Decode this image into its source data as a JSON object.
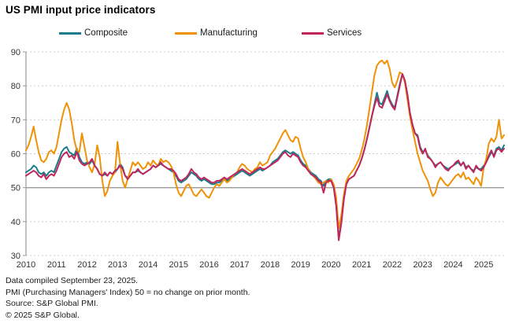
{
  "header": {
    "title": "US PMI input price indicators"
  },
  "legend": {
    "items": [
      {
        "label": "Composite",
        "color": "#1b7c8c"
      },
      {
        "label": "Manufacturing",
        "color": "#f09207"
      },
      {
        "label": "Services",
        "color": "#c0265c"
      }
    ]
  },
  "chart_data": {
    "type": "line",
    "title": "US PMI input price indicators",
    "x_unit": "month",
    "x_start": "2010-01",
    "x_end": "2025-09",
    "x_tick_labels": [
      "2010",
      "2011",
      "2012",
      "2013",
      "2014",
      "2015",
      "2016",
      "2017",
      "2018",
      "2019",
      "2020",
      "2021",
      "2022",
      "2023",
      "2024",
      "2025"
    ],
    "ylim": [
      30,
      90
    ],
    "y_ticks": [
      30,
      40,
      50,
      60,
      70,
      80,
      90
    ],
    "reference_line": {
      "value": 50,
      "style": "solid",
      "color": "#999999"
    },
    "grid": "dotted-horizontal",
    "grid_color": "#cccccc",
    "axis_color": "#999999",
    "legend_position": "top",
    "series": [
      {
        "name": "Composite",
        "color": "#1b7c8c",
        "values": [
          54.5,
          55,
          55.5,
          56.5,
          56,
          54.5,
          54,
          54.5,
          53.5,
          54.5,
          55,
          54.5,
          56.5,
          58.5,
          60.5,
          61.5,
          62,
          60.5,
          60,
          59.5,
          61.5,
          59,
          57.5,
          57,
          57.5,
          57,
          58,
          56.5,
          55.5,
          54,
          53.5,
          54,
          53.5,
          54.5,
          54,
          54.5,
          55.5,
          57,
          56,
          53.5,
          53,
          53.5,
          54.5,
          54.5,
          55,
          54.5,
          54,
          54.5,
          55,
          55.5,
          56.5,
          56,
          56.5,
          57,
          56.5,
          56,
          55.5,
          55,
          54.5,
          53.5,
          52,
          51.5,
          52,
          52.5,
          53.5,
          54.5,
          54,
          53.5,
          52.5,
          52,
          52.5,
          52,
          51.5,
          51,
          51,
          51.5,
          51.5,
          52,
          52.5,
          52,
          52.5,
          53,
          53.5,
          54,
          54.5,
          55,
          54.5,
          54,
          53.5,
          54,
          54.5,
          55,
          55.5,
          55,
          55.5,
          56,
          56.5,
          57.5,
          58,
          58.5,
          59.5,
          60.5,
          61,
          60.5,
          60,
          60.5,
          60,
          59.5,
          58,
          57,
          56.5,
          55.5,
          54.5,
          54,
          53.5,
          52.5,
          52,
          50.5,
          52,
          52.5,
          52.5,
          50.5,
          45,
          35,
          40,
          47,
          51.5,
          52.5,
          53,
          53.5,
          55,
          56.5,
          58.5,
          61,
          64,
          67.5,
          71,
          74.5,
          78,
          75,
          74.5,
          76.5,
          78.5,
          76,
          74.5,
          73.5,
          77,
          80.5,
          83.5,
          81.5,
          77.5,
          72,
          68.5,
          66,
          65.5,
          62,
          60.5,
          61,
          59.5,
          58.5,
          57.5,
          56.5,
          57,
          57.5,
          56.5,
          56,
          55.5,
          56,
          56.5,
          57,
          57.5,
          56.5,
          57.5,
          56,
          56.5,
          55.5,
          55,
          56,
          55.5,
          55.5,
          56.5,
          57.5,
          59,
          60.5,
          59.5,
          61.5,
          62,
          61,
          62.5
        ]
      },
      {
        "name": "Manufacturing",
        "color": "#f09207",
        "values": [
          61,
          62.5,
          65,
          68,
          64,
          60.5,
          58,
          57.5,
          58.5,
          60.5,
          61,
          60,
          62,
          66,
          70,
          73,
          75,
          73,
          69,
          64,
          61,
          60.5,
          66,
          62,
          58,
          56,
          54.5,
          57,
          62.5,
          59,
          52,
          47.5,
          49,
          52,
          53.5,
          54.5,
          63.5,
          57,
          52,
          50,
          52.5,
          55,
          57.5,
          56.5,
          57.5,
          56.5,
          55.5,
          56,
          57.5,
          56.5,
          58,
          57,
          56.5,
          58.5,
          57.5,
          58,
          57.5,
          56.5,
          54.5,
          51,
          48.5,
          47.5,
          49,
          50.5,
          51,
          49.5,
          48,
          47.5,
          48.5,
          49.5,
          48.5,
          47.5,
          47,
          48.5,
          50,
          51,
          50.5,
          51.5,
          52.5,
          51.5,
          52,
          53,
          54,
          54.5,
          56,
          57,
          56.5,
          55.5,
          55,
          54.5,
          55.5,
          56,
          57.5,
          56.5,
          57,
          57.5,
          59.5,
          60.5,
          61.5,
          63,
          64.5,
          66,
          67,
          65.5,
          64,
          63.5,
          65,
          64.5,
          61.5,
          59,
          57.5,
          55.5,
          54,
          53.5,
          52.5,
          51.5,
          51,
          51.5,
          52,
          51.5,
          52.5,
          51,
          47,
          38,
          42,
          48,
          52,
          53.5,
          54.5,
          55.5,
          57,
          58.5,
          61,
          64,
          68,
          73,
          78,
          83,
          86,
          87,
          87.5,
          86.5,
          87.5,
          85,
          81,
          79.5,
          81.5,
          84,
          83.5,
          81,
          76,
          71,
          67,
          63.5,
          60,
          57.5,
          55,
          53.5,
          52,
          49.5,
          47.5,
          48.5,
          51.5,
          53,
          52,
          51,
          50.5,
          51.5,
          52.5,
          53.5,
          54,
          53,
          54.5,
          52.5,
          53,
          52,
          51,
          53,
          52,
          50.5,
          56,
          58.5,
          63,
          64.5,
          63.5,
          65,
          70,
          64.5,
          65.5
        ]
      },
      {
        "name": "Services",
        "color": "#c0265c",
        "values": [
          53.5,
          54,
          54.5,
          55,
          54.5,
          53.5,
          53,
          54,
          52.5,
          53.5,
          54,
          53.5,
          55,
          57,
          59,
          60,
          60.5,
          59,
          59.5,
          58.5,
          60.5,
          58,
          57,
          56.5,
          57,
          57.5,
          58.5,
          56.5,
          55.5,
          54,
          53.5,
          54.5,
          53.5,
          54.5,
          54,
          55,
          55.5,
          56.5,
          55.5,
          53.5,
          52.5,
          53.5,
          54.5,
          54.5,
          55.5,
          54.5,
          54,
          54.5,
          55,
          55.5,
          56.5,
          56,
          56.5,
          57.5,
          56.5,
          56,
          55.5,
          55.5,
          55,
          54,
          52.5,
          52,
          52.5,
          53,
          54,
          55.5,
          54.5,
          54,
          53,
          52.5,
          53,
          52.5,
          52,
          51.5,
          51.5,
          52,
          52,
          52.5,
          53,
          52.5,
          53,
          53.5,
          54,
          54.5,
          55,
          55.5,
          55,
          54.5,
          54,
          54.5,
          55,
          55.5,
          56,
          55.5,
          55.5,
          56,
          56.5,
          57,
          57.5,
          58,
          59,
          60,
          60.5,
          59.5,
          59,
          60,
          59.5,
          59,
          57.5,
          56.5,
          56,
          55,
          54,
          53.5,
          53,
          52,
          51.5,
          48.5,
          51.5,
          52,
          52,
          50,
          44.5,
          34.5,
          39.5,
          46.5,
          51,
          52.5,
          53,
          53.5,
          55,
          56.5,
          58.5,
          61,
          64,
          67.5,
          71,
          74,
          76.5,
          74,
          73.5,
          75.5,
          77.5,
          75.5,
          74,
          73,
          76.5,
          80,
          83.5,
          81.5,
          77.5,
          72,
          68.5,
          66,
          65,
          61.5,
          60,
          61.5,
          59,
          58.5,
          57.5,
          56,
          57,
          57.5,
          56.5,
          55.5,
          55,
          56,
          56.5,
          57.5,
          58,
          56.5,
          57.5,
          55.5,
          56.5,
          55.5,
          54.5,
          56.5,
          55.5,
          55,
          56,
          57.5,
          59.5,
          61,
          59,
          61,
          61.5,
          60.5,
          61.5
        ]
      }
    ]
  },
  "footer": {
    "lines": [
      "Data compiled September 23, 2025.",
      "PMI (Purchasing Managers' Index) 50 = no change on prior month.",
      "Source: S&P Global PMI.",
      "© 2025 S&P Global."
    ]
  }
}
